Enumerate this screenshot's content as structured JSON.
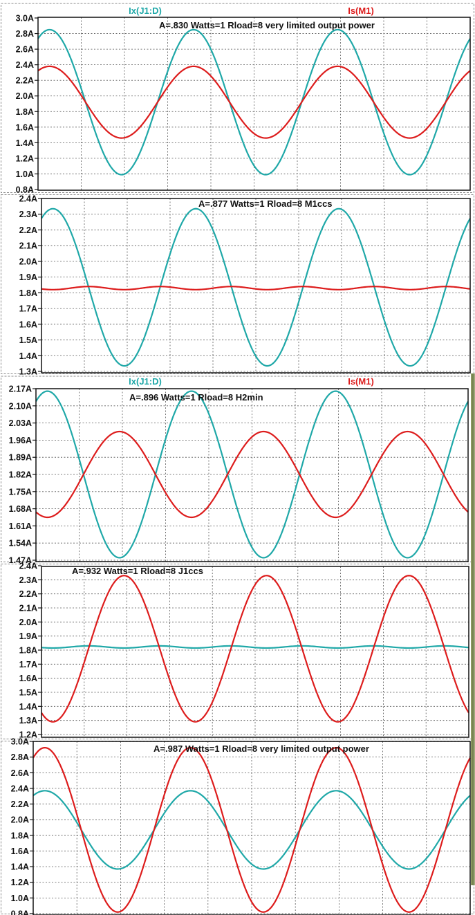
{
  "chart_data": [
    {
      "type": "line",
      "title": "A=.830 Watts=1 Rload=8 very limited output power",
      "y_ticks": [
        "3.0A",
        "2.8A",
        "2.6A",
        "2.4A",
        "2.2A",
        "2.0A",
        "1.8A",
        "1.6A",
        "1.4A",
        "1.2A",
        "1.0A",
        "0.8A"
      ],
      "ylim": [
        0.8,
        3.0
      ],
      "grid": true,
      "legend": [
        "Ix(J1:D)",
        "Is(M1)"
      ],
      "series": [
        {
          "name": "Ix(J1:D)",
          "color": "#1fa8a8",
          "center": 1.92,
          "amplitude": 0.93,
          "phase": 0,
          "harmonic2": 0
        },
        {
          "name": "Is(M1)",
          "color": "#dd1c1c",
          "center": 1.92,
          "amplitude": 0.46,
          "phase": 0,
          "harmonic2": 0
        }
      ]
    },
    {
      "type": "line",
      "title": "A=.877 Watts=1 Rload=8 M1ccs",
      "y_ticks": [
        "2.4A",
        "2.3A",
        "2.2A",
        "2.1A",
        "2.0A",
        "1.9A",
        "1.8A",
        "1.7A",
        "1.6A",
        "1.5A",
        "1.4A",
        "1.3A"
      ],
      "ylim": [
        1.3,
        2.4
      ],
      "grid": true,
      "series": [
        {
          "name": "Ix(J1:D)",
          "color": "#1fa8a8",
          "center": 1.835,
          "amplitude": 0.5,
          "phase": 0,
          "harmonic2": 0
        },
        {
          "name": "Is(M1)",
          "color": "#dd1c1c",
          "center": 1.82,
          "amplitude": 0.0,
          "phase": 0,
          "harmonic2": 0.02
        }
      ]
    },
    {
      "type": "line",
      "title": "A=.896 Watts=1 Rload=8 H2min",
      "y_ticks": [
        "2.17A",
        "2.10A",
        "2.03A",
        "1.96A",
        "1.89A",
        "1.82A",
        "1.75A",
        "1.68A",
        "1.61A",
        "1.54A",
        "1.47A"
      ],
      "ylim": [
        1.47,
        2.17
      ],
      "grid": true,
      "legend": [
        "Ix(J1:D)",
        "Is(M1)"
      ],
      "series": [
        {
          "name": "Ix(J1:D)",
          "color": "#1fa8a8",
          "center": 1.82,
          "amplitude": 0.34,
          "phase": 0,
          "harmonic2": 0
        },
        {
          "name": "Is(M1)",
          "color": "#dd1c1c",
          "center": 1.82,
          "amplitude": 0.175,
          "phase": 180,
          "harmonic2": 0
        }
      ]
    },
    {
      "type": "line",
      "title": "A=.932 Watts=1 Rload=8 J1ccs",
      "y_ticks": [
        "2.4A",
        "2.3A",
        "2.2A",
        "2.1A",
        "2.0A",
        "1.9A",
        "1.8A",
        "1.7A",
        "1.6A",
        "1.5A",
        "1.4A",
        "1.3A",
        "1.2A"
      ],
      "ylim": [
        1.2,
        2.4
      ],
      "grid": true,
      "series": [
        {
          "name": "Ix(J1:D)",
          "color": "#1fa8a8",
          "center": 1.815,
          "amplitude": 0.0,
          "phase": 0,
          "harmonic2": 0.015
        },
        {
          "name": "Is(M1)",
          "color": "#dd1c1c",
          "center": 1.81,
          "amplitude": 0.52,
          "phase": 180,
          "harmonic2": 0
        }
      ]
    },
    {
      "type": "line",
      "title": "A=.987 Watts=1 Rload=8 very limited output power",
      "y_ticks": [
        "3.0A",
        "2.8A",
        "2.6A",
        "2.4A",
        "2.2A",
        "2.0A",
        "1.8A",
        "1.6A",
        "1.4A",
        "1.2A",
        "1.0A",
        "0.8A"
      ],
      "ylim": [
        0.8,
        3.0
      ],
      "grid": true,
      "series": [
        {
          "name": "Ix(J1:D)",
          "color": "#1fa8a8",
          "center": 1.87,
          "amplitude": 0.5,
          "phase": 0,
          "harmonic2": 0
        },
        {
          "name": "Is(M1)",
          "color": "#dd1c1c",
          "center": 1.87,
          "amplitude": 1.05,
          "phase": 0,
          "harmonic2": 0
        }
      ]
    }
  ]
}
